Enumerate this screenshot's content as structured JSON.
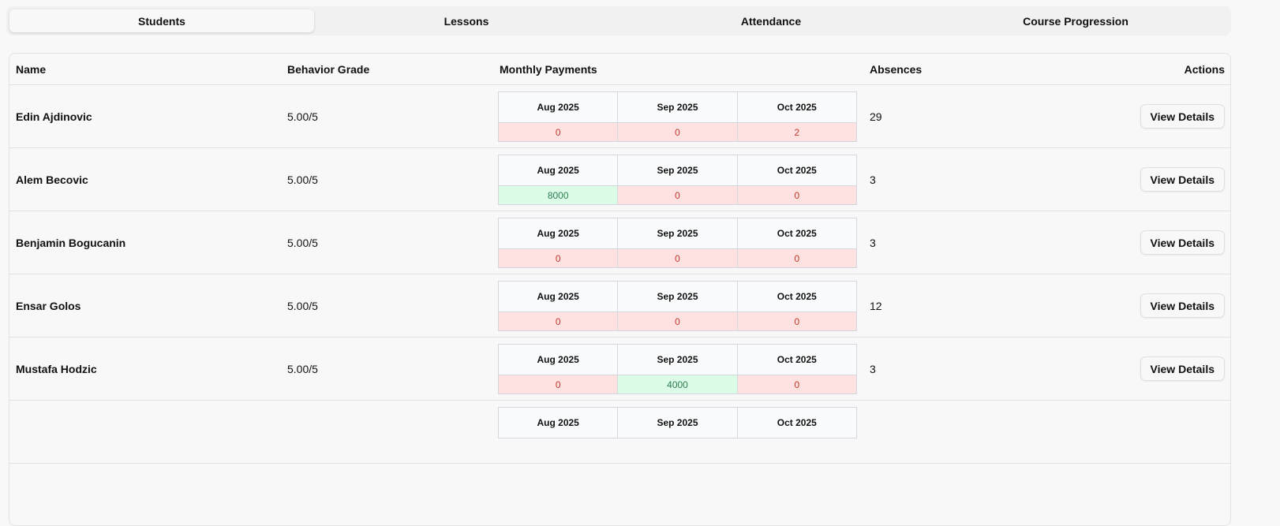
{
  "tabs": [
    {
      "label": "Students",
      "active": true
    },
    {
      "label": "Lessons"
    },
    {
      "label": "Attendance"
    },
    {
      "label": "Course Progression"
    }
  ],
  "table": {
    "headers": {
      "name": "Name",
      "grade": "Behavior Grade",
      "payments": "Monthly Payments",
      "absences": "Absences",
      "actions": "Actions"
    },
    "months": [
      "Aug 2025",
      "Sep 2025",
      "Oct 2025"
    ],
    "rows": [
      {
        "name": "Edin Ajdinovic",
        "grade": "5.00/5",
        "payments": [
          "0",
          "0",
          "2"
        ],
        "paid": [
          false,
          false,
          false
        ],
        "absences": "29",
        "action": "View Details"
      },
      {
        "name": "Alem Becovic",
        "grade": "5.00/5",
        "payments": [
          "8000",
          "0",
          "0"
        ],
        "paid": [
          true,
          false,
          false
        ],
        "absences": "3",
        "action": "View Details"
      },
      {
        "name": "Benjamin Bogucanin",
        "grade": "5.00/5",
        "payments": [
          "0",
          "0",
          "0"
        ],
        "paid": [
          false,
          false,
          false
        ],
        "absences": "3",
        "action": "View Details"
      },
      {
        "name": "Ensar Golos",
        "grade": "5.00/5",
        "payments": [
          "0",
          "0",
          "0"
        ],
        "paid": [
          false,
          false,
          false
        ],
        "absences": "12",
        "action": "View Details"
      },
      {
        "name": "Mustafa Hodzic",
        "grade": "5.00/5",
        "payments": [
          "0",
          "4000",
          "0"
        ],
        "paid": [
          false,
          true,
          false
        ],
        "absences": "3",
        "action": "View Details"
      }
    ]
  },
  "colors": {
    "unpaid_bg": "#fee2e2",
    "unpaid_text": "#c0392b",
    "paid_bg": "#dcfce7",
    "paid_text": "#2e7d4f"
  }
}
